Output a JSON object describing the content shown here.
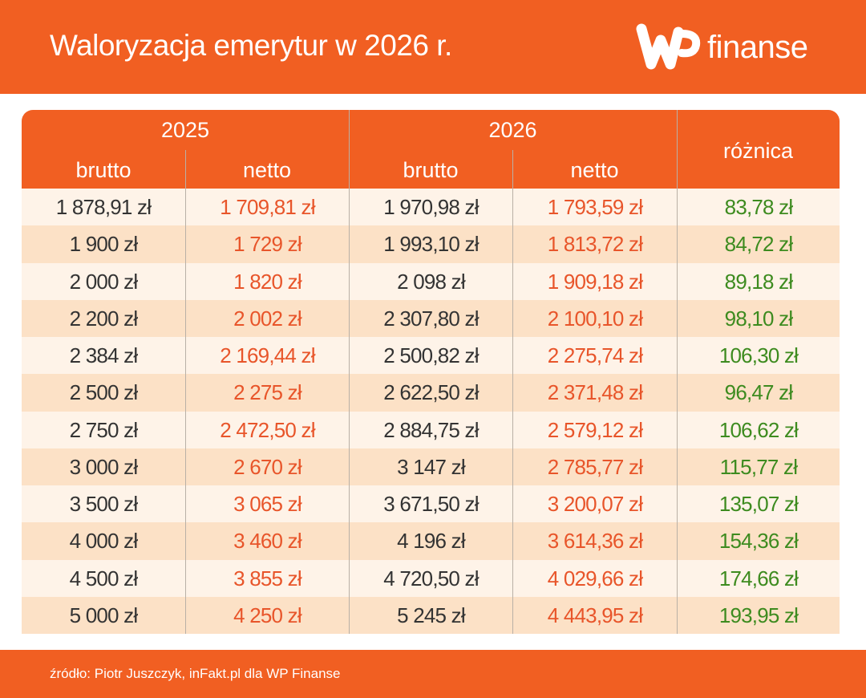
{
  "header": {
    "title": "Waloryzacja emerytur w 2026 r.",
    "logo_text": "finanse",
    "logo_mark": "WP"
  },
  "table": {
    "years": [
      "2025",
      "2026"
    ],
    "sub_headers": [
      "brutto",
      "netto",
      "brutto",
      "netto"
    ],
    "diff_header": "różnica",
    "rows": [
      [
        "1 878,91 zł",
        "1 709,81 zł",
        "1 970,98 zł",
        "1 793,59 zł",
        "83,78 zł"
      ],
      [
        "1 900 zł",
        "1 729 zł",
        "1 993,10 zł",
        "1 813,72 zł",
        "84,72 zł"
      ],
      [
        "2 000 zł",
        "1 820 zł",
        "2 098 zł",
        "1 909,18 zł",
        "89,18 zł"
      ],
      [
        "2 200 zł",
        "2 002 zł",
        "2 307,80 zł",
        "2 100,10 zł",
        "98,10 zł"
      ],
      [
        "2 384 zł",
        "2 169,44 zł",
        "2 500,82 zł",
        "2 275,74 zł",
        "106,30 zł"
      ],
      [
        "2 500 zł",
        "2 275 zł",
        "2 622,50 zł",
        "2 371,48 zł",
        "96,47 zł"
      ],
      [
        "2 750 zł",
        "2 472,50 zł",
        "2 884,75 zł",
        "2 579,12 zł",
        "106,62 zł"
      ],
      [
        "3 000 zł",
        "2 670 zł",
        "3 147 zł",
        "2 785,77 zł",
        "115,77 zł"
      ],
      [
        "3 500 zł",
        "3 065 zł",
        "3 671,50 zł",
        "3 200,07 zł",
        "135,07 zł"
      ],
      [
        "4 000 zł",
        "3 460 zł",
        "4 196 zł",
        "3 614,36 zł",
        "154,36 zł"
      ],
      [
        "4 500 zł",
        "3 855 zł",
        "4 720,50 zł",
        "4 029,66 zł",
        "174,66 zł"
      ],
      [
        "5 000 zł",
        "4 250 zł",
        "5 245 zł",
        "4 443,95 zł",
        "193,95 zł"
      ]
    ]
  },
  "footer": {
    "source": "źródło: Piotr Juszczyk, inFakt.pl dla WP Finanse"
  },
  "colors": {
    "brand": "#F15F22",
    "brutto": "#333333",
    "netto": "#E8552A",
    "difference": "#3D8B1F",
    "row_light": "#FEF3E8",
    "row_dark": "#FCE1C6"
  }
}
